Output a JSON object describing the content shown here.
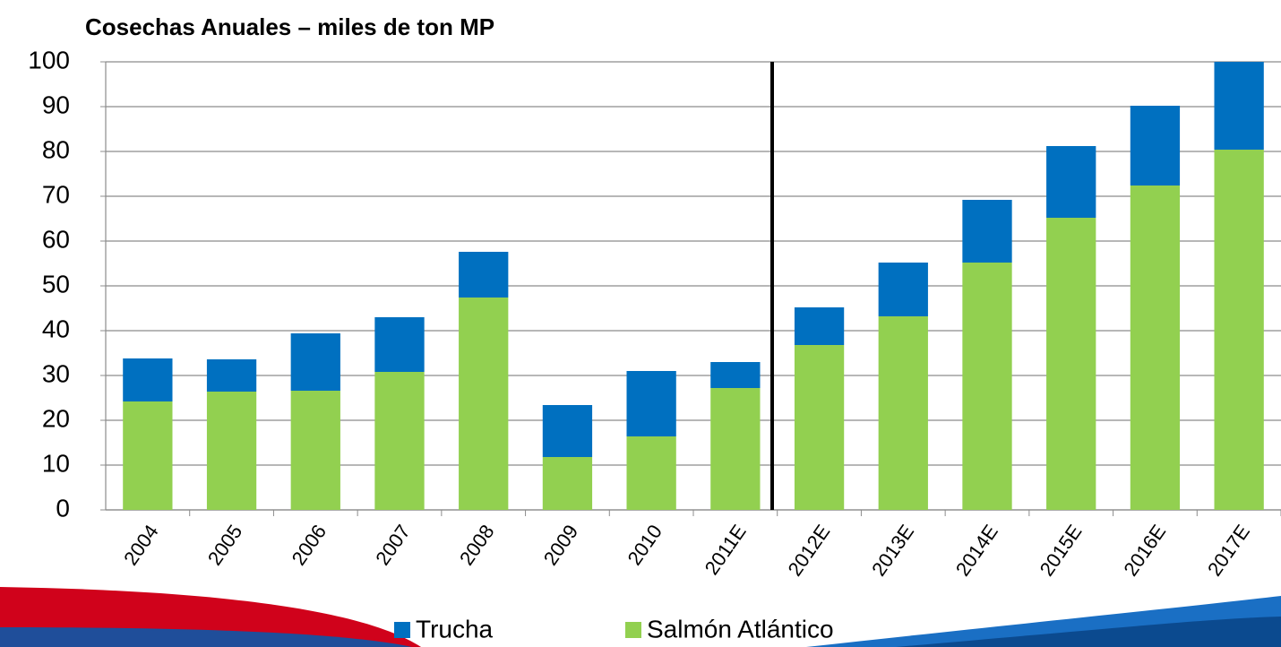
{
  "chart_data": {
    "type": "stacked-bar",
    "title": "Cosechas Anuales – miles de ton MP",
    "categories": [
      "2004",
      "2005",
      "2006",
      "2007",
      "2008",
      "2009",
      "2010",
      "2011E",
      "2012E",
      "2013E",
      "2014E",
      "2015E",
      "2016E",
      "2017E"
    ],
    "series": [
      {
        "name": "Trucha",
        "color": "#0070c0",
        "values": [
          9.6,
          7.2,
          12.8,
          12.2,
          10.2,
          11.6,
          14.6,
          5.8,
          8.4,
          12,
          14,
          16,
          17.8,
          19.6
        ]
      },
      {
        "name": "Salmón Atlántico",
        "color": "#92d050",
        "values": [
          24.2,
          26.4,
          26.6,
          30.8,
          47.4,
          11.8,
          16.4,
          27.2,
          36.8,
          43.2,
          55.2,
          65.2,
          72.4,
          80.4
        ]
      }
    ],
    "ylim": [
      0,
      100
    ],
    "yticks": [
      0,
      10,
      20,
      30,
      40,
      50,
      60,
      70,
      80,
      90,
      100
    ],
    "grid": true,
    "legend": "bottom"
  }
}
